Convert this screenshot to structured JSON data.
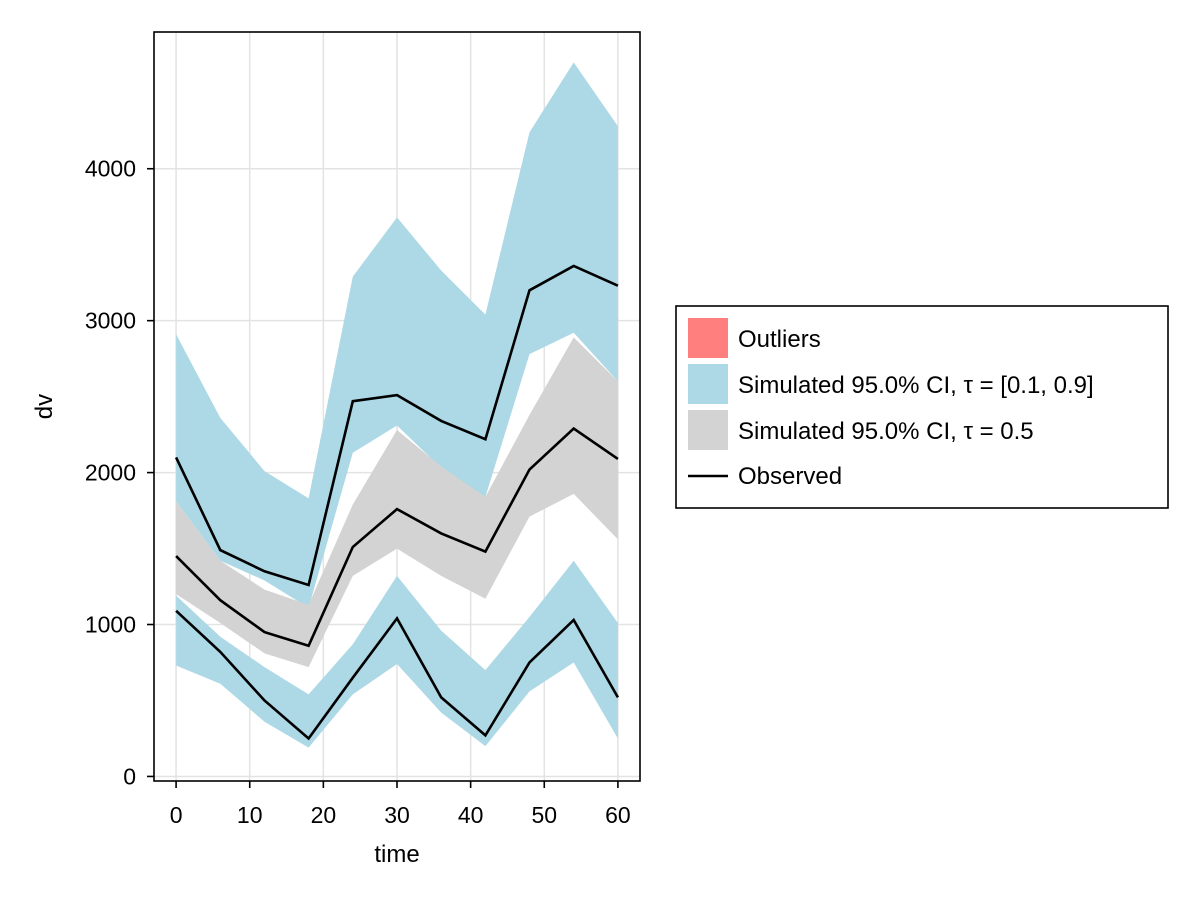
{
  "chart_data": {
    "type": "area",
    "xlabel": "time",
    "ylabel": "dv",
    "xlim": [
      -3,
      63
    ],
    "ylim": [
      -30,
      4900
    ],
    "xticks": [
      0,
      10,
      20,
      30,
      40,
      50,
      60
    ],
    "yticks": [
      0,
      1000,
      2000,
      3000,
      4000
    ],
    "xtick_labels": [
      "0",
      "10",
      "20",
      "30",
      "40",
      "50",
      "60"
    ],
    "ytick_labels": [
      "0",
      "1000",
      "2000",
      "3000",
      "4000"
    ],
    "grid": true,
    "legend_position": "right",
    "x": [
      0,
      6,
      12,
      18,
      24,
      30,
      36,
      42,
      48,
      54,
      60
    ],
    "bands": [
      {
        "name": "Simulated 95.0% CI, τ = [0.1, 0.9]",
        "role": "upper-quantile-ci",
        "color": "#add8e6",
        "lower": [
          1810,
          1420,
          1290,
          1110,
          2130,
          2310,
          2030,
          1840,
          2780,
          2920,
          2600
        ],
        "upper": [
          2910,
          2360,
          2010,
          1830,
          3290,
          3680,
          3330,
          3040,
          4240,
          4700,
          4280
        ]
      },
      {
        "name": "Simulated 95.0% CI, τ = [0.1, 0.9]",
        "role": "lower-quantile-ci",
        "color": "#add8e6",
        "lower": [
          730,
          610,
          360,
          190,
          540,
          740,
          420,
          200,
          560,
          750,
          250
        ],
        "upper": [
          1190,
          920,
          720,
          540,
          870,
          1320,
          960,
          700,
          1050,
          1420,
          1010
        ]
      },
      {
        "name": "Simulated 95.0% CI, τ = 0.5",
        "role": "median-ci",
        "color": "#d3d3d3",
        "lower": [
          1200,
          1010,
          810,
          720,
          1320,
          1500,
          1320,
          1170,
          1710,
          1860,
          1560
        ],
        "upper": [
          1810,
          1420,
          1230,
          1130,
          1790,
          2280,
          2040,
          1840,
          2380,
          2890,
          2600
        ]
      }
    ],
    "series": [
      {
        "name": "Observed",
        "quantile": "0.9",
        "color": "#000000",
        "values": [
          2100,
          1490,
          1350,
          1260,
          2470,
          2510,
          2340,
          2220,
          3200,
          3360,
          3230
        ]
      },
      {
        "name": "Observed",
        "quantile": "0.5",
        "color": "#000000",
        "values": [
          1450,
          1160,
          950,
          860,
          1510,
          1760,
          1600,
          1480,
          2020,
          2290,
          2090
        ]
      },
      {
        "name": "Observed",
        "quantile": "0.1",
        "color": "#000000",
        "values": [
          1090,
          820,
          500,
          250,
          650,
          1040,
          520,
          270,
          750,
          1030,
          520
        ]
      }
    ],
    "legend": [
      {
        "label": "Outliers",
        "kind": "patch",
        "color": "#ff7f7f"
      },
      {
        "label": "Simulated 95.0% CI, τ = [0.1, 0.9]",
        "kind": "patch",
        "color": "#add8e6"
      },
      {
        "label": "Simulated 95.0% CI, τ = 0.5",
        "kind": "patch",
        "color": "#d3d3d3"
      },
      {
        "label": "Observed",
        "kind": "line",
        "color": "#000000"
      }
    ]
  }
}
